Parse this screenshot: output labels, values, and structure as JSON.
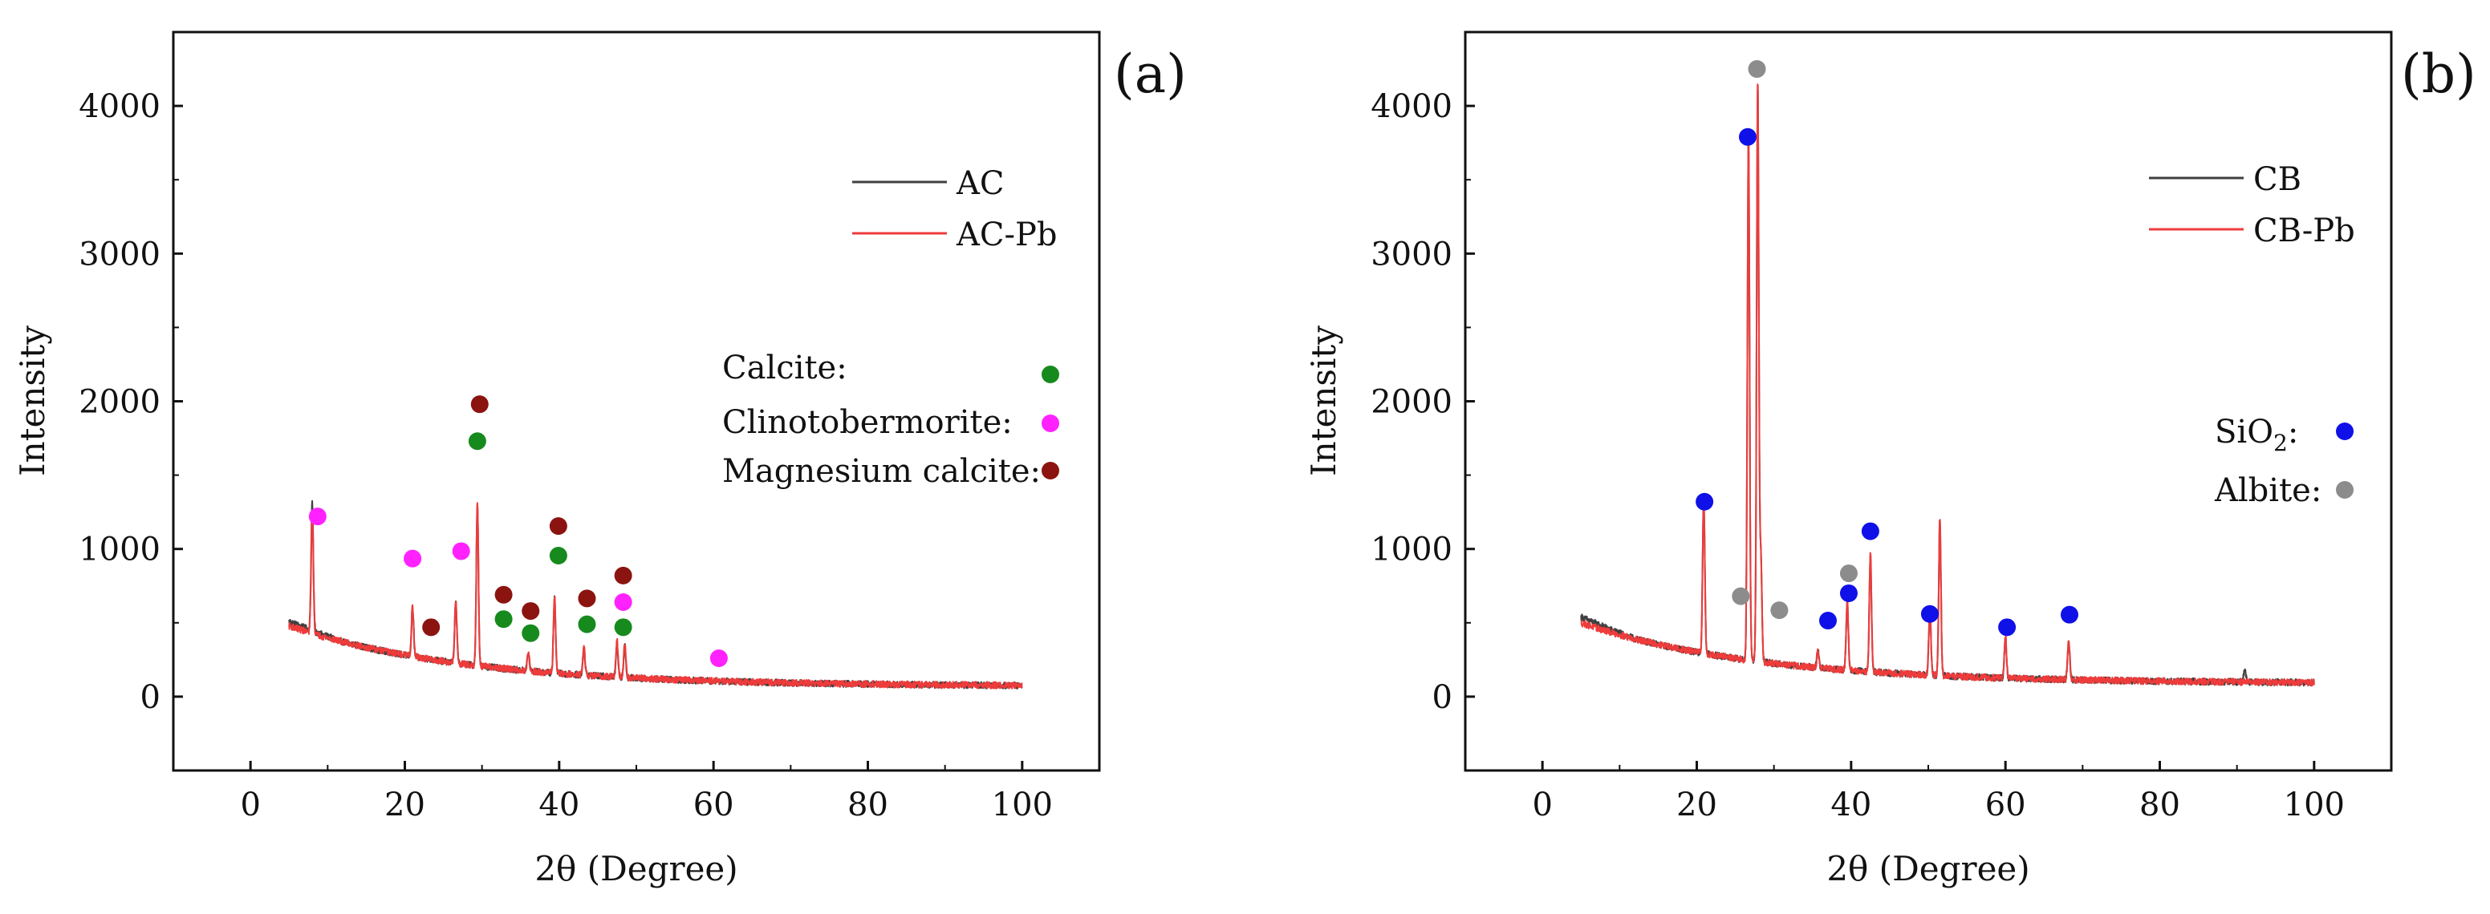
{
  "chart_data": [
    {
      "panel": "(a)",
      "type": "line",
      "xlabel": "2θ (Degree)",
      "ylabel": "Intensity",
      "xlim": [
        -10,
        110
      ],
      "ylim": [
        -500,
        4500
      ],
      "xticks": [
        0,
        20,
        40,
        60,
        80,
        100
      ],
      "yticks": [
        0,
        1000,
        2000,
        3000,
        4000
      ],
      "legend_position": "top-right",
      "baseline": {
        "start": 5,
        "end": 100,
        "start_value": 480,
        "end_value": 70
      },
      "series": [
        {
          "name": "AC",
          "color": "#404040",
          "offset": 30,
          "peaks": [
            [
              8.0,
              880
            ],
            [
              21.0,
              330
            ],
            [
              26.6,
              420
            ],
            [
              29.4,
              1080
            ],
            [
              36.0,
              120
            ],
            [
              39.4,
              500
            ],
            [
              43.2,
              180
            ],
            [
              47.5,
              230
            ],
            [
              48.5,
              210
            ]
          ]
        },
        {
          "name": "AC-Pb",
          "color": "#ee3b3b",
          "offset": 0,
          "peaks": [
            [
              8.0,
              820
            ],
            [
              21.0,
              330
            ],
            [
              26.6,
              420
            ],
            [
              29.4,
              1090
            ],
            [
              36.0,
              130
            ],
            [
              39.4,
              520
            ],
            [
              43.2,
              190
            ],
            [
              47.5,
              240
            ],
            [
              48.5,
              220
            ]
          ]
        }
      ],
      "marker_groups": [
        {
          "name": "Calcite:",
          "color": "#178a1e",
          "points": [
            [
              29.4,
              1730
            ],
            [
              32.8,
              525
            ],
            [
              36.3,
              430
            ],
            [
              39.9,
              955
            ],
            [
              43.6,
              490
            ],
            [
              48.3,
              470
            ]
          ]
        },
        {
          "name": "Clinotobermorite:",
          "color": "#ff22ff",
          "points": [
            [
              8.7,
              1220
            ],
            [
              21.0,
              935
            ],
            [
              27.3,
              985
            ],
            [
              48.3,
              640
            ],
            [
              60.7,
              260
            ]
          ]
        },
        {
          "name": "Magnesium calcite:",
          "color": "#8b1410",
          "points": [
            [
              23.4,
              470
            ],
            [
              29.7,
              1980
            ],
            [
              32.8,
              690
            ],
            [
              36.3,
              580
            ],
            [
              39.9,
              1155
            ],
            [
              43.6,
              665
            ],
            [
              48.3,
              820
            ]
          ]
        }
      ]
    },
    {
      "panel": "(b)",
      "type": "line",
      "xlabel": "2θ (Degree)",
      "ylabel": "Intensity",
      "xlim": [
        -10,
        110
      ],
      "ylim": [
        -500,
        4500
      ],
      "xticks": [
        0,
        20,
        40,
        60,
        80,
        100
      ],
      "yticks": [
        0,
        1000,
        2000,
        3000,
        4000
      ],
      "legend_position": "top-right",
      "baseline": {
        "start": 5,
        "end": 100,
        "start_value": 500,
        "end_value": 90
      },
      "series": [
        {
          "name": "CB",
          "color": "#404040",
          "offset": 40,
          "peaks": [
            [
              20.9,
              1050
            ],
            [
              26.7,
              3550
            ],
            [
              27.9,
              3900
            ],
            [
              28.3,
              700
            ],
            [
              35.7,
              110
            ],
            [
              39.5,
              450
            ],
            [
              42.5,
              780
            ],
            [
              50.2,
              440
            ],
            [
              51.5,
              1040
            ],
            [
              60.0,
              270
            ],
            [
              68.2,
              260
            ],
            [
              91.0,
              90
            ]
          ]
        },
        {
          "name": "CB-Pb",
          "color": "#ee3b3b",
          "offset": 0,
          "peaks": [
            [
              20.9,
              1060
            ],
            [
              26.7,
              3580
            ],
            [
              27.9,
              3940
            ],
            [
              28.3,
              720
            ],
            [
              35.7,
              110
            ],
            [
              39.5,
              470
            ],
            [
              42.5,
              800
            ],
            [
              50.2,
              450
            ],
            [
              51.5,
              1060
            ],
            [
              60.0,
              280
            ],
            [
              68.2,
              270
            ]
          ]
        }
      ],
      "marker_groups": [
        {
          "name": "SiO₂:",
          "label_main": "SiO",
          "label_sub": "2",
          "label_tail": ":",
          "color": "#1010e8",
          "points": [
            [
              21.0,
              1320
            ],
            [
              26.6,
              3790
            ],
            [
              37.0,
              515
            ],
            [
              39.7,
              700
            ],
            [
              42.5,
              1120
            ],
            [
              50.2,
              560
            ],
            [
              60.2,
              470
            ],
            [
              68.3,
              555
            ]
          ]
        },
        {
          "name": "Albite:",
          "color": "#8c8c8c",
          "points": [
            [
              25.7,
              680
            ],
            [
              27.8,
              4250
            ],
            [
              30.7,
              585
            ],
            [
              39.7,
              835
            ]
          ]
        }
      ]
    }
  ]
}
